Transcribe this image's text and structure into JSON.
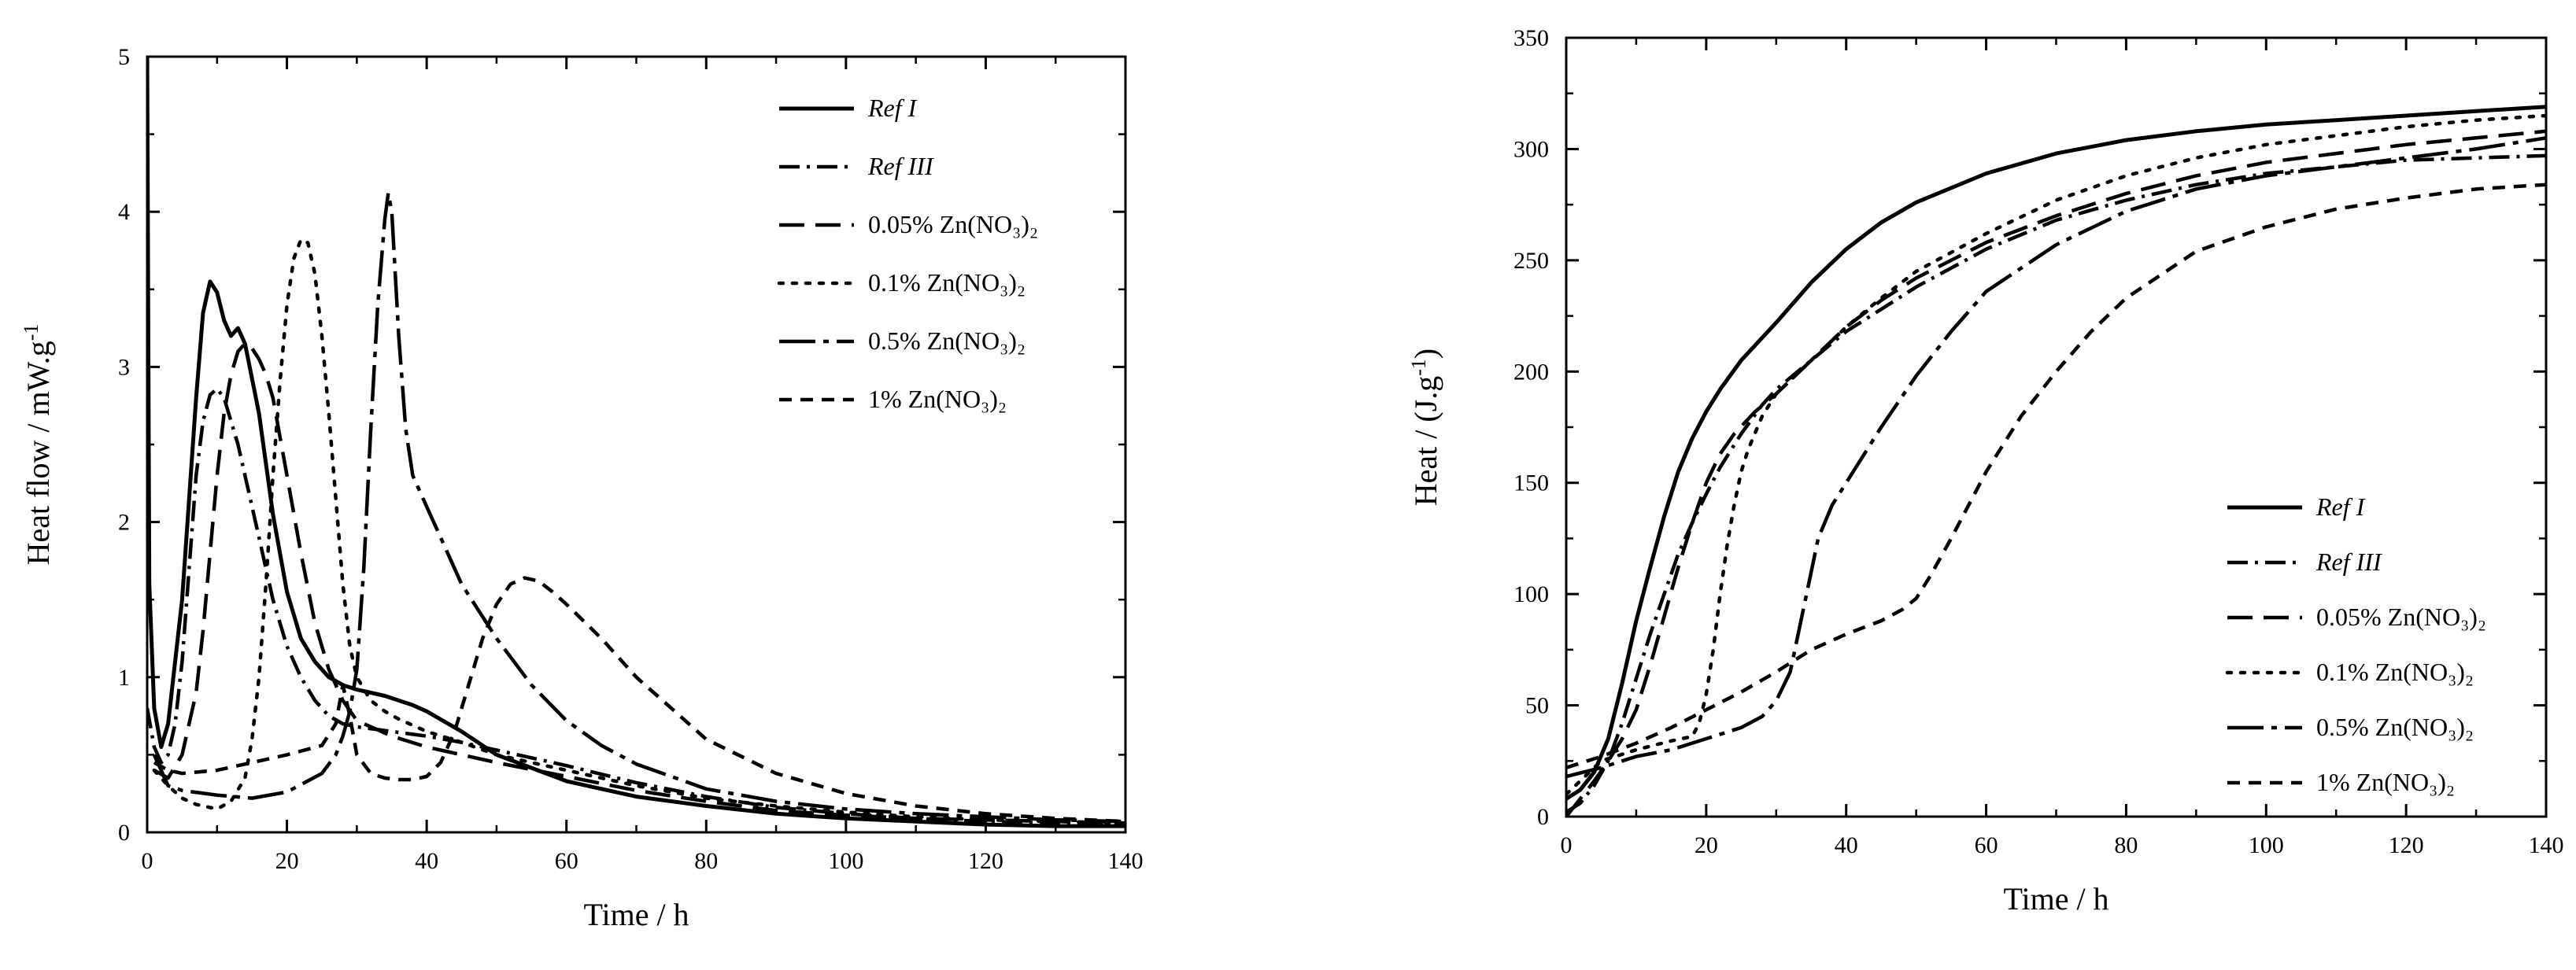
{
  "chart_data": [
    {
      "type": "line",
      "xlabel": "Time / h",
      "ylabel": "Heat flow / mW.g",
      "ylabel_sup": "-1",
      "xlim": [
        0,
        140
      ],
      "ylim": [
        0,
        5
      ],
      "xticks": [
        0,
        20,
        40,
        60,
        80,
        100,
        120,
        140
      ],
      "yticks": [
        0,
        1,
        2,
        3,
        4,
        5
      ],
      "legend_position": "top-right",
      "series": [
        {
          "name": "Ref I",
          "style": "solid",
          "x": [
            0,
            0.3,
            1,
            2,
            3,
            5,
            7,
            8,
            9,
            10,
            11,
            12,
            13,
            14,
            16,
            18,
            20,
            22,
            24,
            26,
            28,
            30,
            32,
            34,
            36,
            38,
            40,
            45,
            50,
            60,
            70,
            80,
            90,
            100,
            110,
            120,
            130,
            140
          ],
          "y": [
            5.0,
            1.6,
            0.8,
            0.55,
            0.7,
            1.5,
            2.8,
            3.35,
            3.55,
            3.48,
            3.3,
            3.2,
            3.25,
            3.15,
            2.7,
            2.05,
            1.55,
            1.25,
            1.1,
            1.0,
            0.95,
            0.92,
            0.9,
            0.88,
            0.85,
            0.82,
            0.78,
            0.65,
            0.5,
            0.33,
            0.23,
            0.17,
            0.12,
            0.09,
            0.07,
            0.05,
            0.04,
            0.04
          ]
        },
        {
          "name": "Ref III",
          "style": "dashdot",
          "x": [
            0,
            1,
            2,
            3,
            4,
            5,
            6,
            7,
            8,
            9,
            10,
            11,
            12,
            13,
            14,
            16,
            18,
            20,
            22,
            24,
            26,
            28,
            30,
            35,
            40,
            45,
            50,
            55,
            60,
            70,
            80,
            90,
            100,
            110,
            120,
            130,
            140
          ],
          "y": [
            0.8,
            0.55,
            0.45,
            0.5,
            0.7,
            1.1,
            1.7,
            2.3,
            2.65,
            2.82,
            2.86,
            2.8,
            2.65,
            2.5,
            2.3,
            1.9,
            1.5,
            1.2,
            1.0,
            0.85,
            0.75,
            0.7,
            0.68,
            0.65,
            0.62,
            0.58,
            0.53,
            0.48,
            0.43,
            0.32,
            0.23,
            0.16,
            0.12,
            0.09,
            0.07,
            0.06,
            0.05
          ]
        },
        {
          "name": "0.05% Zn(NO₃)₂",
          "style": "dash",
          "x": [
            1,
            3,
            5,
            7,
            8,
            9,
            10,
            11,
            12,
            13,
            14,
            15,
            16,
            17,
            18,
            19,
            20,
            22,
            24,
            26,
            28,
            30,
            35,
            40,
            50,
            60,
            70,
            80,
            90,
            100,
            110,
            120,
            140
          ],
          "y": [
            0.4,
            0.35,
            0.5,
            0.9,
            1.3,
            1.8,
            2.3,
            2.7,
            2.95,
            3.1,
            3.15,
            3.12,
            3.05,
            2.95,
            2.8,
            2.55,
            2.3,
            1.8,
            1.35,
            1.05,
            0.85,
            0.72,
            0.62,
            0.55,
            0.45,
            0.36,
            0.27,
            0.2,
            0.14,
            0.11,
            0.09,
            0.08,
            0.06
          ]
        },
        {
          "name": "0.1% Zn(NO₃)₂",
          "style": "dot",
          "x": [
            1,
            3,
            5,
            7,
            9,
            10,
            12,
            14,
            15,
            16,
            17,
            18,
            19,
            20,
            21,
            22,
            23,
            24,
            25,
            26,
            27,
            28,
            29,
            30,
            32,
            34,
            36,
            40,
            45,
            50,
            55,
            60,
            70,
            80,
            90,
            100,
            110,
            120,
            130,
            140
          ],
          "y": [
            0.4,
            0.3,
            0.22,
            0.18,
            0.16,
            0.15,
            0.2,
            0.35,
            0.6,
            1.0,
            1.6,
            2.3,
            2.9,
            3.4,
            3.7,
            3.82,
            3.8,
            3.6,
            3.2,
            2.7,
            2.15,
            1.6,
            1.2,
            1.0,
            0.85,
            0.78,
            0.73,
            0.65,
            0.58,
            0.5,
            0.45,
            0.4,
            0.3,
            0.22,
            0.17,
            0.13,
            0.1,
            0.08,
            0.07,
            0.06
          ]
        },
        {
          "name": "0.5% Zn(NO₃)₂",
          "style": "longdash",
          "x": [
            1,
            3,
            5,
            10,
            15,
            20,
            25,
            27,
            28,
            29,
            30,
            31,
            32,
            33,
            34,
            34.5,
            35,
            36,
            37,
            38,
            40,
            42,
            45,
            50,
            55,
            60,
            65,
            70,
            80,
            90,
            100,
            110,
            120,
            130,
            140
          ],
          "y": [
            0.5,
            0.3,
            0.27,
            0.24,
            0.22,
            0.26,
            0.38,
            0.5,
            0.62,
            0.78,
            1.05,
            1.7,
            2.6,
            3.4,
            3.95,
            4.12,
            4.0,
            3.2,
            2.6,
            2.3,
            2.1,
            1.9,
            1.6,
            1.25,
            0.95,
            0.72,
            0.56,
            0.44,
            0.28,
            0.2,
            0.15,
            0.12,
            0.1,
            0.08,
            0.07
          ]
        },
        {
          "name": "1% Zn(NO₃)₂",
          "style": "shortdash",
          "x": [
            1,
            3,
            5,
            10,
            15,
            20,
            25,
            27,
            28,
            29,
            30,
            32,
            34,
            36,
            38,
            40,
            42,
            44,
            46,
            48,
            50,
            52,
            54,
            56,
            58,
            60,
            65,
            70,
            75,
            80,
            90,
            100,
            110,
            120,
            130,
            140
          ],
          "y": [
            0.45,
            0.4,
            0.38,
            0.4,
            0.45,
            0.5,
            0.56,
            0.7,
            0.95,
            0.75,
            0.5,
            0.38,
            0.35,
            0.34,
            0.34,
            0.36,
            0.45,
            0.65,
            0.95,
            1.25,
            1.47,
            1.6,
            1.64,
            1.62,
            1.55,
            1.47,
            1.25,
            1.0,
            0.8,
            0.6,
            0.38,
            0.25,
            0.17,
            0.12,
            0.09,
            0.07
          ]
        }
      ]
    },
    {
      "type": "line",
      "xlabel": "Time / h",
      "ylabel": "Heat / (J.g",
      "ylabel_sup": "-1",
      "ylabel_end": ")",
      "xlim": [
        0,
        140
      ],
      "ylim": [
        0,
        350
      ],
      "xticks": [
        0,
        20,
        40,
        60,
        80,
        100,
        120,
        140
      ],
      "yticks": [
        0,
        50,
        100,
        150,
        200,
        250,
        300,
        350
      ],
      "legend_position": "bottom-right",
      "series": [
        {
          "name": "Ref I",
          "style": "solid",
          "x": [
            0,
            2,
            4,
            6,
            8,
            10,
            12,
            14,
            16,
            18,
            20,
            22,
            25,
            30,
            35,
            40,
            45,
            50,
            60,
            70,
            80,
            90,
            100,
            110,
            120,
            130,
            140
          ],
          "y": [
            8,
            12,
            20,
            35,
            60,
            88,
            112,
            135,
            155,
            170,
            182,
            192,
            205,
            222,
            240,
            255,
            267,
            276,
            289,
            298,
            304,
            308,
            311,
            313,
            315,
            317,
            319
          ]
        },
        {
          "name": "Ref III",
          "style": "dashdot",
          "x": [
            0,
            2,
            4,
            6,
            8,
            10,
            12,
            14,
            16,
            18,
            20,
            22,
            25,
            28,
            30,
            35,
            40,
            45,
            50,
            60,
            70,
            80,
            90,
            100,
            110,
            120,
            130,
            140
          ],
          "y": [
            2,
            6,
            14,
            25,
            42,
            62,
            82,
            100,
            118,
            132,
            145,
            157,
            172,
            185,
            192,
            205,
            218,
            228,
            238,
            255,
            268,
            277,
            284,
            289,
            292,
            295,
            296,
            297
          ]
        },
        {
          "name": "0.05% Zn(NO₃)₂",
          "style": "dash",
          "x": [
            0,
            2,
            4,
            6,
            8,
            10,
            12,
            14,
            16,
            18,
            20,
            22,
            24,
            27,
            30,
            35,
            40,
            45,
            50,
            60,
            70,
            80,
            90,
            100,
            110,
            120,
            130,
            140
          ],
          "y": [
            0,
            8,
            16,
            25,
            35,
            48,
            68,
            90,
            112,
            132,
            150,
            163,
            172,
            182,
            190,
            205,
            220,
            232,
            242,
            258,
            270,
            280,
            288,
            294,
            298,
            302,
            305,
            308
          ]
        },
        {
          "name": "0.1% Zn(NO₃)₂",
          "style": "dot",
          "x": [
            0,
            5,
            10,
            15,
            18,
            19,
            20,
            21,
            22,
            23,
            24,
            25,
            26,
            28,
            30,
            32,
            35,
            40,
            45,
            50,
            60,
            70,
            80,
            90,
            100,
            110,
            120,
            130,
            140
          ],
          "y": [
            10,
            25,
            30,
            34,
            36,
            42,
            55,
            75,
            100,
            122,
            140,
            155,
            165,
            180,
            190,
            196,
            205,
            220,
            233,
            245,
            262,
            277,
            288,
            296,
            302,
            306,
            310,
            313,
            315
          ]
        },
        {
          "name": "0.5% Zn(NO₃)₂",
          "style": "longdash",
          "x": [
            0,
            5,
            10,
            15,
            20,
            25,
            28,
            30,
            32,
            33,
            34,
            35,
            36,
            38,
            40,
            42,
            45,
            50,
            55,
            60,
            70,
            80,
            90,
            100,
            110,
            120,
            130,
            140
          ],
          "y": [
            18,
            22,
            27,
            30,
            35,
            40,
            45,
            52,
            65,
            80,
            95,
            110,
            125,
            140,
            150,
            160,
            175,
            198,
            218,
            236,
            257,
            272,
            282,
            288,
            292,
            296,
            300,
            305
          ]
        },
        {
          "name": "1% Zn(NO₃)₂",
          "style": "shortdash",
          "x": [
            0,
            2,
            5,
            10,
            15,
            20,
            25,
            30,
            35,
            40,
            45,
            48,
            50,
            52,
            55,
            60,
            65,
            70,
            75,
            80,
            90,
            100,
            110,
            120,
            130,
            140
          ],
          "y": [
            22,
            24,
            27,
            33,
            40,
            48,
            56,
            65,
            75,
            82,
            88,
            93,
            98,
            108,
            125,
            155,
            180,
            200,
            218,
            233,
            254,
            265,
            273,
            278,
            282,
            284
          ]
        }
      ]
    }
  ]
}
